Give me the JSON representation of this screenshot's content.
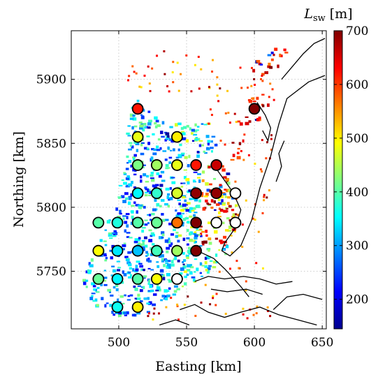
{
  "chart_data": {
    "type": "scatter",
    "xlabel": "Easting [km]",
    "ylabel": "Northing [km]",
    "xlim": [
      465,
      653
    ],
    "ylim": [
      5705,
      5938
    ],
    "xticks": [
      500,
      550,
      600,
      650
    ],
    "yticks": [
      5750,
      5800,
      5850,
      5900
    ],
    "grid": true,
    "colorbar": {
      "label_main": "L",
      "label_sub": "sw",
      "label_unit": " [m]",
      "range": [
        145,
        700
      ],
      "ticks": [
        200,
        300,
        400,
        500,
        600,
        700
      ],
      "colormap": "jet",
      "position": "right"
    },
    "station_markers": [
      {
        "x": 514,
        "y": 5877,
        "value": 620
      },
      {
        "x": 600,
        "y": 5877,
        "value": 700
      },
      {
        "x": 514,
        "y": 5855,
        "value": 480
      },
      {
        "x": 543,
        "y": 5855,
        "value": 500
      },
      {
        "x": 514,
        "y": 5833,
        "value": 420
      },
      {
        "x": 528,
        "y": 5833,
        "value": 440
      },
      {
        "x": 543,
        "y": 5833,
        "value": 480
      },
      {
        "x": 557,
        "y": 5833,
        "value": 620
      },
      {
        "x": 572,
        "y": 5833,
        "value": 660
      },
      {
        "x": 514,
        "y": 5811,
        "value": 350
      },
      {
        "x": 528,
        "y": 5811,
        "value": 380
      },
      {
        "x": 543,
        "y": 5811,
        "value": 470
      },
      {
        "x": 557,
        "y": 5811,
        "value": 690
      },
      {
        "x": 572,
        "y": 5811,
        "value": 690
      },
      {
        "x": 586,
        "y": 5811,
        "value": null
      },
      {
        "x": 485,
        "y": 5788,
        "value": 400
      },
      {
        "x": 499,
        "y": 5788,
        "value": 370
      },
      {
        "x": 514,
        "y": 5788,
        "value": 400
      },
      {
        "x": 528,
        "y": 5788,
        "value": 410
      },
      {
        "x": 543,
        "y": 5788,
        "value": 570
      },
      {
        "x": 557,
        "y": 5788,
        "value": 700
      },
      {
        "x": 572,
        "y": 5788,
        "value": null
      },
      {
        "x": 586,
        "y": 5788,
        "value": null
      },
      {
        "x": 485,
        "y": 5766,
        "value": 490
      },
      {
        "x": 499,
        "y": 5766,
        "value": 340
      },
      {
        "x": 514,
        "y": 5766,
        "value": 320
      },
      {
        "x": 528,
        "y": 5766,
        "value": 390
      },
      {
        "x": 543,
        "y": 5766,
        "value": 440
      },
      {
        "x": 557,
        "y": 5766,
        "value": 700
      },
      {
        "x": 485,
        "y": 5744,
        "value": 410
      },
      {
        "x": 499,
        "y": 5744,
        "value": 350
      },
      {
        "x": 514,
        "y": 5744,
        "value": 400
      },
      {
        "x": 528,
        "y": 5744,
        "value": 490
      },
      {
        "x": 543,
        "y": 5744,
        "value": null
      },
      {
        "x": 499,
        "y": 5722,
        "value": 360
      },
      {
        "x": 514,
        "y": 5722,
        "value": 500
      }
    ]
  }
}
